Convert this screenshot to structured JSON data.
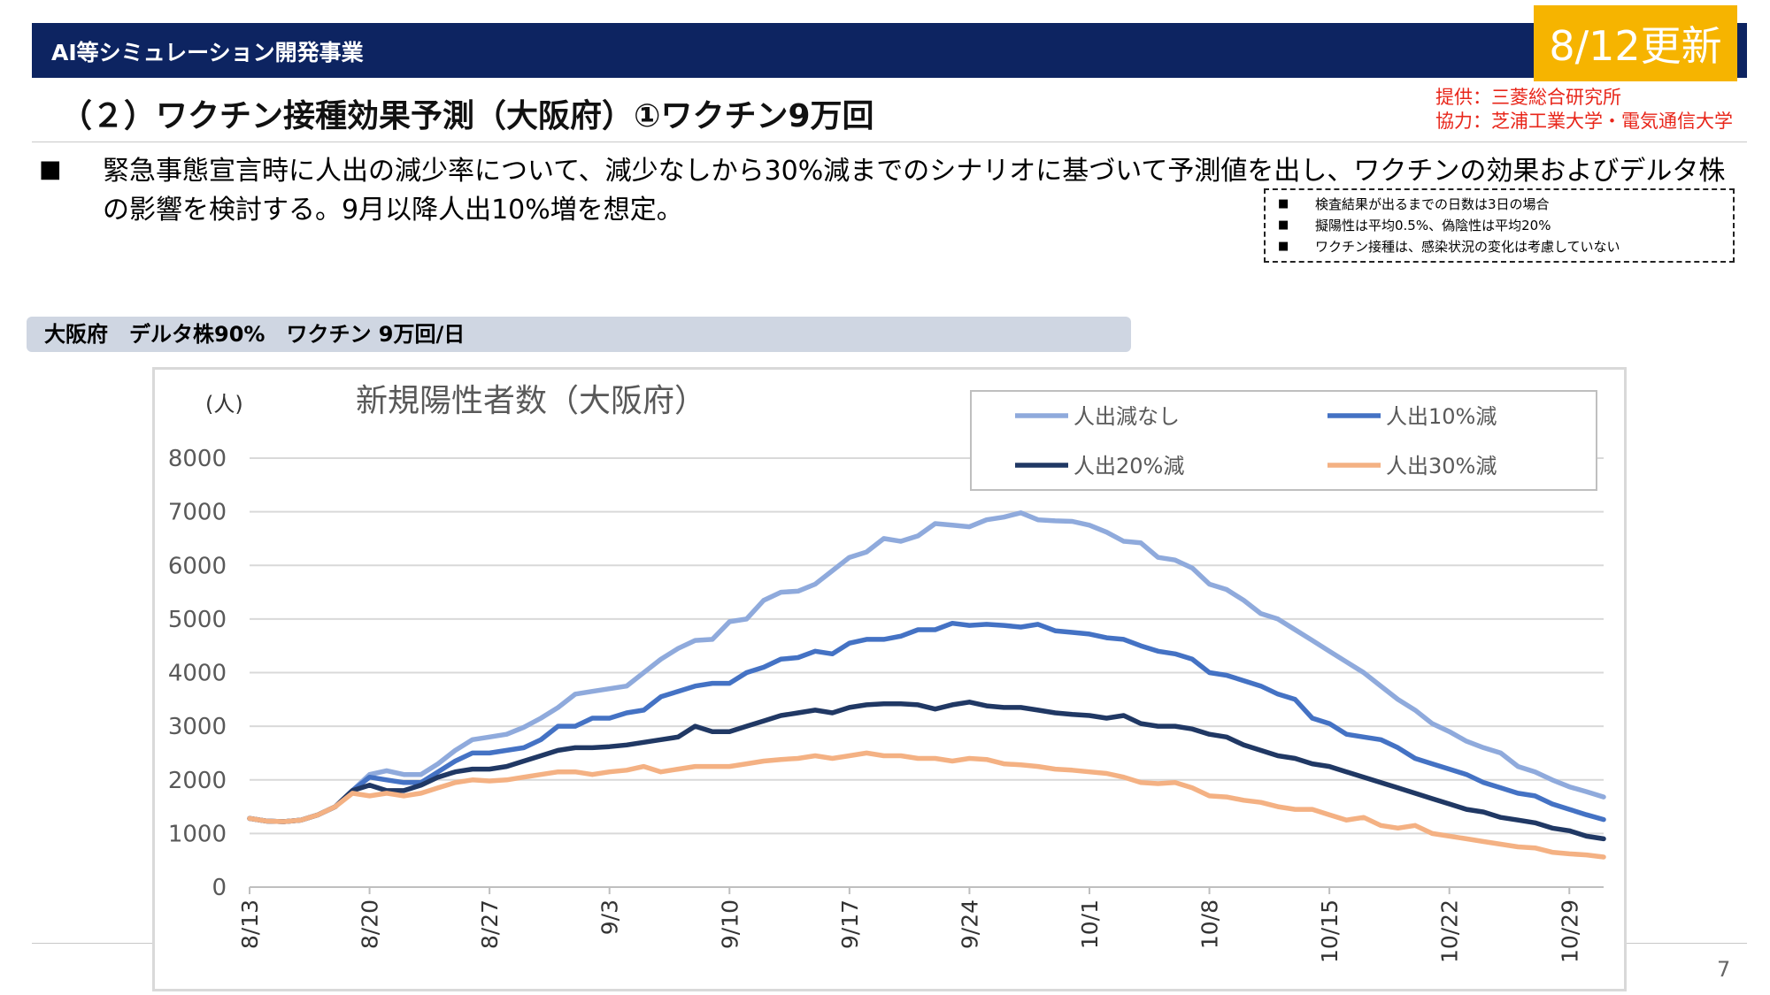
{
  "header": {
    "title": "AI等シミュレーション開発事業",
    "update_badge": "8/12更新"
  },
  "page_title": "（２）ワクチン接種効果予測（大阪府）①ワクチン9万回",
  "credits": {
    "provider": "提供：三菱総合研究所",
    "cooperation": "協力：芝浦工業大学・電気通信大学"
  },
  "bullet": {
    "marker": "■",
    "text": "緊急事態宣言時に人出の減少率について、減少なしから30%減までのシナリオに基づいて予測値を出し、ワクチンの効果およびデルタ株の影響を検討する。9月以降人出10%増を想定。"
  },
  "notes": [
    {
      "marker": "■",
      "text": "検査結果が出るまでの日数は3日の場合"
    },
    {
      "marker": "■",
      "text": "擬陽性は平均0.5%、偽陰性は平均20%"
    },
    {
      "marker": "■",
      "text": "ワクチン接種は、感染状況の変化は考慮していない"
    }
  ],
  "section_label": "大阪府　デルタ株90%　ワクチン 9万回/日",
  "page_number": "7",
  "chart_data": {
    "type": "line",
    "title": "新規陽性者数（大阪府）",
    "ylabel": "(人)",
    "xlabel": "",
    "ylim": [
      0,
      8000
    ],
    "yticks": [
      0,
      1000,
      2000,
      3000,
      4000,
      5000,
      6000,
      7000,
      8000
    ],
    "grid": true,
    "legend_position": "top-right",
    "x_start": "8/13",
    "x_tick_labels": [
      "8/13",
      "8/20",
      "8/27",
      "9/3",
      "9/10",
      "9/17",
      "9/24",
      "10/1",
      "10/8",
      "10/15",
      "10/22",
      "10/29"
    ],
    "series": [
      {
        "name": "人出減なし",
        "color": "#8faadc",
        "values": [
          1280,
          1230,
          1220,
          1250,
          1350,
          1500,
          1800,
          2100,
          2170,
          2100,
          2100,
          2300,
          2550,
          2750,
          2800,
          2850,
          2980,
          3150,
          3350,
          3600,
          3650,
          3700,
          3750,
          4000,
          4250,
          4450,
          4600,
          4620,
          4950,
          5000,
          5350,
          5500,
          5520,
          5650,
          5900,
          6150,
          6250,
          6500,
          6450,
          6550,
          6780,
          6750,
          6720,
          6850,
          6900,
          6980,
          6850,
          6830,
          6820,
          6750,
          6620,
          6450,
          6420,
          6150,
          6100,
          5950,
          5650,
          5550,
          5350,
          5100,
          5000,
          4800,
          4600,
          4400,
          4200,
          4000,
          3750,
          3500,
          3300,
          3050,
          2900,
          2720,
          2600,
          2500,
          2250,
          2150,
          2000,
          1870,
          1780,
          1680
        ]
      },
      {
        "name": "人出10%減",
        "color": "#4472c4",
        "values": [
          1280,
          1230,
          1220,
          1250,
          1350,
          1500,
          1800,
          2050,
          2000,
          1950,
          1950,
          2150,
          2350,
          2500,
          2500,
          2550,
          2600,
          2750,
          3000,
          3000,
          3150,
          3150,
          3250,
          3300,
          3550,
          3650,
          3750,
          3800,
          3800,
          4000,
          4100,
          4250,
          4280,
          4400,
          4350,
          4550,
          4620,
          4620,
          4680,
          4800,
          4800,
          4920,
          4880,
          4900,
          4880,
          4850,
          4900,
          4780,
          4750,
          4720,
          4650,
          4620,
          4500,
          4400,
          4350,
          4250,
          4000,
          3950,
          3850,
          3750,
          3600,
          3500,
          3150,
          3050,
          2850,
          2800,
          2750,
          2600,
          2400,
          2300,
          2200,
          2100,
          1950,
          1850,
          1750,
          1700,
          1550,
          1450,
          1350,
          1260
        ]
      },
      {
        "name": "人出20%減",
        "color": "#203864",
        "values": [
          1280,
          1230,
          1220,
          1250,
          1350,
          1500,
          1800,
          1900,
          1800,
          1800,
          1900,
          2050,
          2150,
          2200,
          2200,
          2250,
          2350,
          2450,
          2550,
          2600,
          2600,
          2620,
          2650,
          2700,
          2750,
          2800,
          3000,
          2900,
          2900,
          3000,
          3100,
          3200,
          3250,
          3300,
          3250,
          3350,
          3400,
          3420,
          3420,
          3400,
          3320,
          3400,
          3450,
          3380,
          3350,
          3350,
          3300,
          3250,
          3220,
          3200,
          3150,
          3200,
          3050,
          3000,
          3000,
          2950,
          2850,
          2800,
          2650,
          2550,
          2450,
          2400,
          2300,
          2250,
          2150,
          2050,
          1950,
          1850,
          1750,
          1650,
          1550,
          1450,
          1400,
          1300,
          1250,
          1200,
          1100,
          1050,
          950,
          900
        ]
      },
      {
        "name": "人出30%減",
        "color": "#f4b183",
        "values": [
          1280,
          1230,
          1220,
          1250,
          1350,
          1500,
          1750,
          1700,
          1750,
          1700,
          1750,
          1850,
          1950,
          2000,
          1980,
          2000,
          2050,
          2100,
          2150,
          2150,
          2100,
          2150,
          2180,
          2250,
          2150,
          2200,
          2250,
          2250,
          2250,
          2300,
          2350,
          2380,
          2400,
          2450,
          2400,
          2450,
          2500,
          2450,
          2450,
          2400,
          2400,
          2350,
          2400,
          2380,
          2300,
          2280,
          2250,
          2200,
          2180,
          2150,
          2120,
          2050,
          1950,
          1930,
          1950,
          1850,
          1700,
          1680,
          1620,
          1580,
          1500,
          1450,
          1450,
          1350,
          1250,
          1300,
          1150,
          1100,
          1150,
          1000,
          950,
          900,
          850,
          800,
          750,
          730,
          650,
          620,
          600,
          560
        ]
      }
    ]
  }
}
